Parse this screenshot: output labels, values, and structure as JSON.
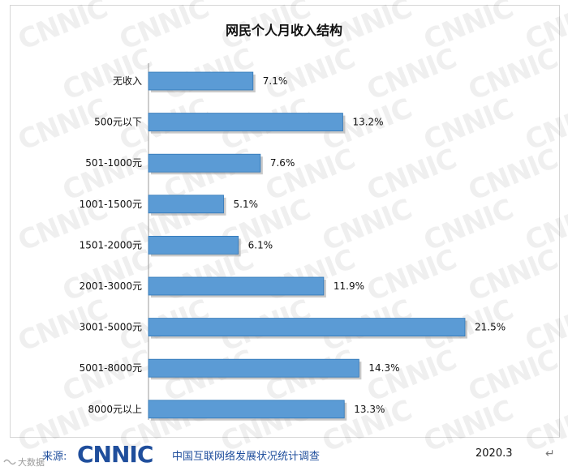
{
  "chart_data": {
    "type": "bar",
    "orientation": "horizontal",
    "title": "网民个人月收入结构",
    "categories": [
      "无收入",
      "500元以下",
      "501-1000元",
      "1001-1500元",
      "1501-2000元",
      "2001-3000元",
      "3001-5000元",
      "5001-8000元",
      "8000元以上"
    ],
    "values": [
      7.1,
      13.2,
      7.6,
      5.1,
      6.1,
      11.9,
      21.5,
      14.3,
      13.3
    ],
    "value_labels": [
      "7.1%",
      "13.2%",
      "7.6%",
      "5.1%",
      "6.1%",
      "11.9%",
      "21.5%",
      "14.3%",
      "13.3%"
    ],
    "xlim": [
      0,
      21.5
    ],
    "grid": false,
    "bar_color": "#5b9bd5",
    "bar_edge_color": "#2e75b6"
  },
  "footer": {
    "source_label": "来源:",
    "logo": "CNNIC",
    "source_text": "中国互联网络发展状况统计调查",
    "date": "2020.3",
    "return_glyph": "↵"
  },
  "watermark": {
    "repeated": "CNNIC",
    "bottom": "大数据"
  },
  "colors": {
    "brand_blue": "#1f4e9c",
    "bar": "#5b9bd5"
  }
}
